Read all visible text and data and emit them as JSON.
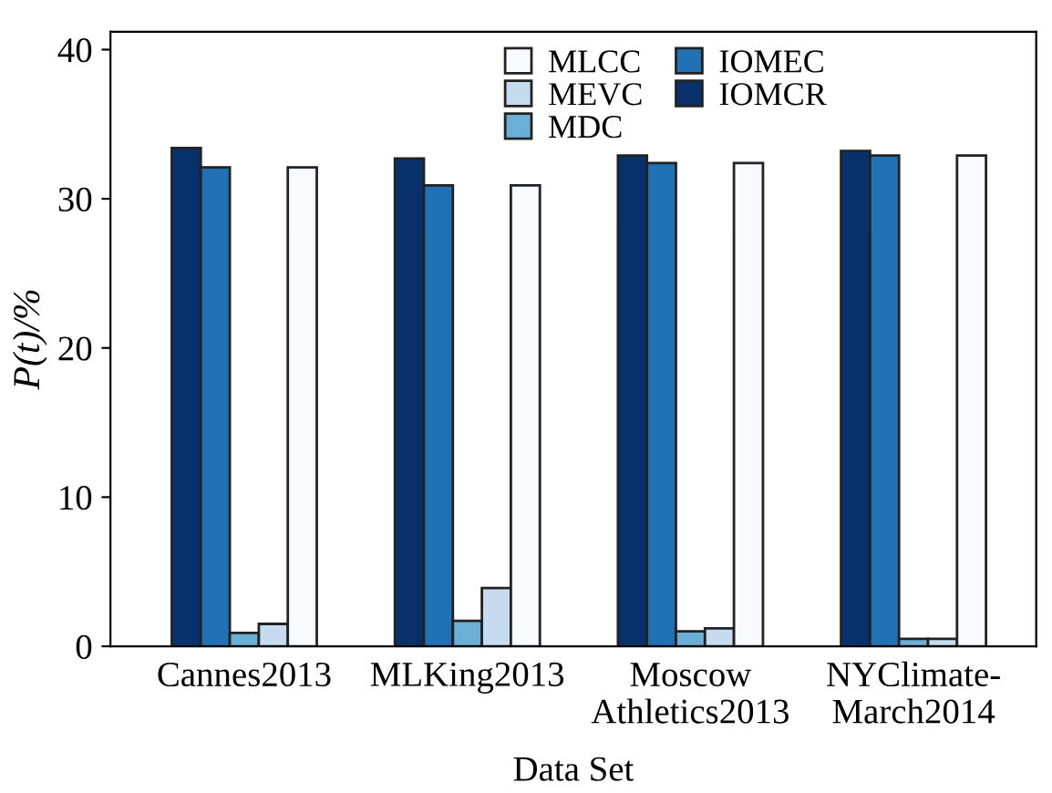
{
  "chart_data": {
    "type": "bar",
    "xlabel": "Data Set",
    "ylabel": "P(t)/%",
    "categories": [
      "Cannes2013",
      "MLKing2013",
      "Moscow\nAthletics2013",
      "NYClimate-\nMarch2014"
    ],
    "series": [
      {
        "name": "IOMCR",
        "color": "#08306b",
        "values": [
          33.4,
          32.7,
          32.9,
          33.2
        ]
      },
      {
        "name": "IOMEC",
        "color": "#2171b5",
        "values": [
          32.1,
          30.9,
          32.4,
          32.9
        ]
      },
      {
        "name": "MDC",
        "color": "#6baed6",
        "values": [
          0.9,
          1.7,
          1.0,
          0.5
        ]
      },
      {
        "name": "MEVC",
        "color": "#c6dbef",
        "values": [
          1.5,
          3.9,
          1.2,
          0.5
        ]
      },
      {
        "name": "MLCC",
        "color": "#f7fbff",
        "values": [
          32.1,
          30.9,
          32.4,
          32.9
        ]
      }
    ],
    "ylim": [
      0,
      41.2
    ],
    "yticks": [
      0,
      10,
      20,
      30,
      40
    ],
    "grid": false,
    "legend": "top"
  }
}
